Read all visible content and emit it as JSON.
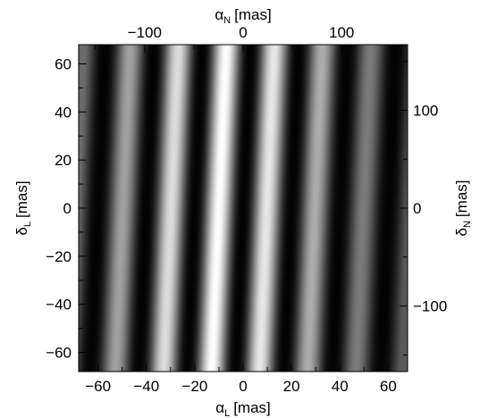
{
  "chart_data": {
    "type": "heatmap",
    "title": "",
    "colormap": "grayscale",
    "grid": false,
    "axes": {
      "bottom": {
        "symbol": "α",
        "subscript": "L",
        "unit": "[mas]",
        "range": [
          -68,
          68
        ],
        "ticks": [
          -60,
          -40,
          -20,
          0,
          20,
          40,
          60
        ],
        "tick_labels": [
          "−60",
          "−40",
          "−20",
          "0",
          "20",
          "40",
          "60"
        ]
      },
      "left": {
        "symbol": "δ",
        "subscript": "L",
        "unit": "[mas]",
        "range": [
          -68,
          68
        ],
        "ticks": [
          -60,
          -40,
          -20,
          0,
          20,
          40,
          60
        ],
        "tick_labels": [
          "−60",
          "−40",
          "−20",
          "0",
          "20",
          "40",
          "60"
        ]
      },
      "top": {
        "symbol": "α",
        "subscript": "N",
        "unit": "[mas]",
        "range": [
          -167,
          167
        ],
        "ticks": [
          -100,
          0,
          100
        ],
        "tick_labels": [
          "−100",
          "0",
          "100"
        ]
      },
      "right": {
        "symbol": "δ",
        "subscript": "N",
        "unit": "[mas]",
        "range": [
          -167,
          167
        ],
        "ticks": [
          -100,
          0,
          100
        ],
        "tick_labels": [
          "−100",
          "0",
          "100"
        ]
      }
    },
    "fringes": {
      "period_mas": 20,
      "bright_centers_mas": [
        -50,
        -30,
        -10,
        10,
        30,
        50
      ],
      "dark_centers_mas": [
        -60,
        -40,
        -20,
        0,
        20,
        40,
        60
      ],
      "tilt_mas_per_mas": 0.045,
      "envelope_center_mas": -8,
      "peak_intensity": 1.0,
      "edge_intensity": 0.35
    }
  }
}
